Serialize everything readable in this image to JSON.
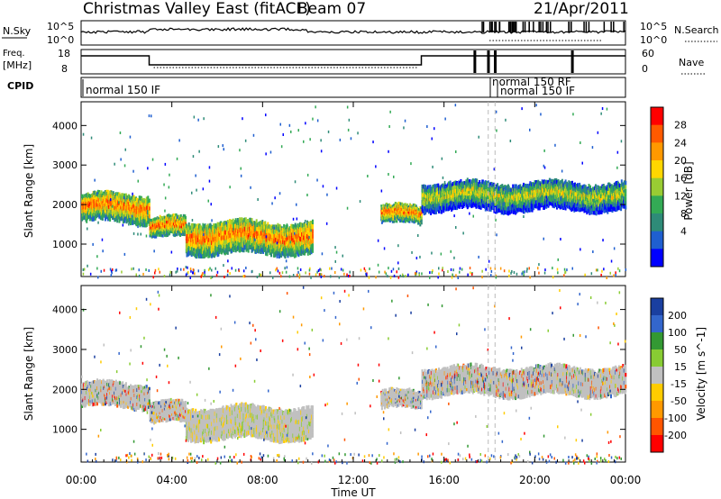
{
  "header": {
    "title": "Christmas Valley East (fitACF)",
    "beam": "Beam 07",
    "date": "21/Apr/2011"
  },
  "strip_labels": {
    "nsky": "N.Sky",
    "nsky_ticks": [
      "10^5",
      "10^0"
    ],
    "nsearch": "N.Search",
    "nsearch_ticks": [
      "10^5",
      "10^0"
    ],
    "freq": "Freq.",
    "freq_unit": "[MHz]",
    "freq_ticks": [
      "18",
      "8"
    ],
    "nave": "Nave",
    "nave_ticks": [
      "60",
      "0"
    ],
    "cpid": "CPID",
    "cpid_entries": [
      "normal 150 IF",
      "normal 150 RF",
      "normal 150 IF"
    ]
  },
  "chart_data": [
    {
      "type": "heatmap",
      "panel": "power",
      "ylabel": "Slant Range [km]",
      "ylim": [
        180,
        4600
      ],
      "yticks": [
        1000,
        2000,
        3000,
        4000
      ],
      "xlim_hours": [
        0,
        24
      ],
      "xticks": [
        "00:00",
        "04:00",
        "08:00",
        "12:00",
        "16:00",
        "20:00",
        "00:00"
      ],
      "colorbar": {
        "label": "Power [dB]",
        "ticks": [
          "28",
          "24",
          "20",
          "16",
          "12",
          "8",
          "4"
        ],
        "colors": [
          "#ff0000",
          "#ff5a00",
          "#ff9900",
          "#ffd700",
          "#99cc33",
          "#33aa55",
          "#2e8b78",
          "#1f5fd0",
          "#0000ff"
        ]
      },
      "features": [
        {
          "t0": 0.0,
          "t1": 3.0,
          "r0": 1500,
          "r1": 2300,
          "level": "18-28 dB"
        },
        {
          "t0": 3.0,
          "t1": 4.6,
          "r0": 1100,
          "r1": 1700,
          "level": "16-26 dB"
        },
        {
          "t0": 4.6,
          "t1": 10.2,
          "r0": 700,
          "r1": 1600,
          "level": "20-30 dB"
        },
        {
          "t0": 13.2,
          "t1": 15.0,
          "r0": 1450,
          "r1": 2000,
          "level": "12-22 dB"
        },
        {
          "t0": 15.0,
          "t1": 24.0,
          "r0": 1800,
          "r1": 2600,
          "level": "8-20 dB"
        }
      ]
    },
    {
      "type": "heatmap",
      "panel": "velocity",
      "ylabel": "Slant Range [km]",
      "ylim": [
        180,
        4600
      ],
      "yticks": [
        1000,
        2000,
        3000,
        4000
      ],
      "xlim_hours": [
        0,
        24
      ],
      "xlabel": "Time UT",
      "xticks": [
        "00:00",
        "04:00",
        "08:00",
        "12:00",
        "16:00",
        "20:00",
        "00:00"
      ],
      "colorbar": {
        "label": "Velocity [m s^-1]",
        "ticks": [
          "200",
          "100",
          "50",
          "15",
          "-15",
          "-50",
          "-100",
          "-200"
        ],
        "colors": [
          "#1a3fa0",
          "#3366cc",
          "#339933",
          "#88cc33",
          "#c0c0c0",
          "#ffcc00",
          "#ff9900",
          "#ff5500",
          "#ff0000"
        ]
      },
      "features": [
        {
          "t0": 0.0,
          "t1": 3.0,
          "r0": 1500,
          "r1": 2200,
          "level": "-15 to 15 m/s"
        },
        {
          "t0": 3.0,
          "t1": 4.6,
          "r0": 1100,
          "r1": 1700,
          "level": "-15 to 15 m/s"
        },
        {
          "t0": 4.6,
          "t1": 10.2,
          "r0": 700,
          "r1": 1600,
          "level": "-50 to 50 m/s"
        },
        {
          "t0": 13.2,
          "t1": 15.0,
          "r0": 1450,
          "r1": 2000,
          "level": "-15 to 15 m/s"
        },
        {
          "t0": 15.0,
          "t1": 24.0,
          "r0": 1800,
          "r1": 2600,
          "level": "-15 to 15 m/s"
        }
      ]
    }
  ]
}
